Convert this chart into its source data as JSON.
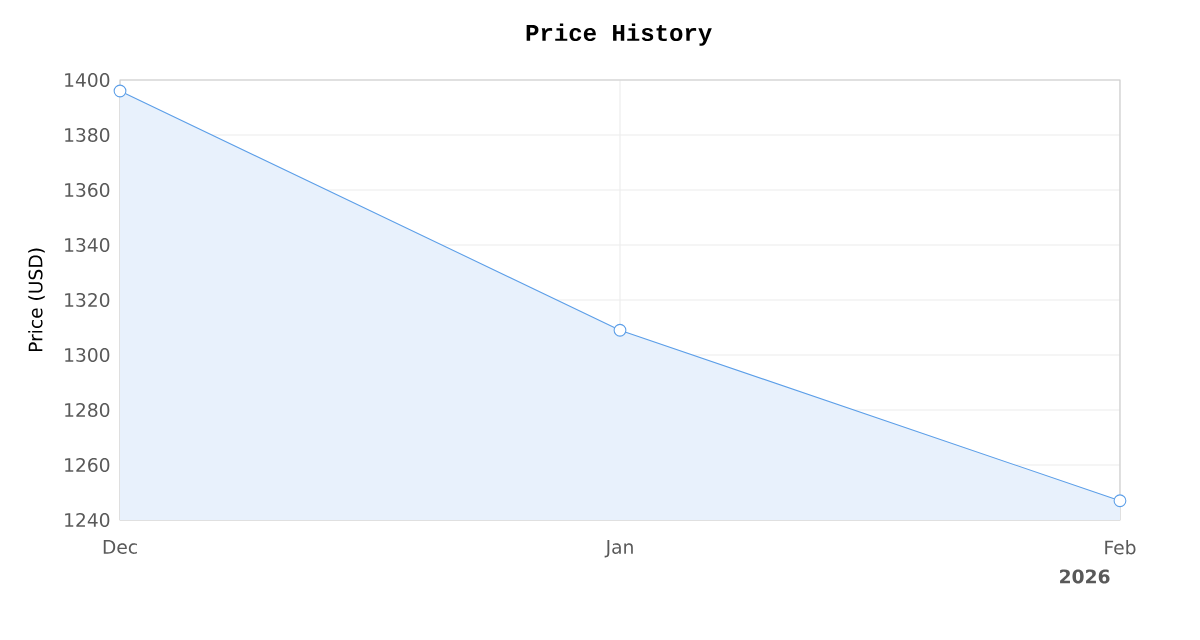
{
  "chart_data": {
    "type": "area",
    "title": "Price History",
    "ylabel": "Price (USD)",
    "x": [
      "2025-12-01",
      "2026-01-01",
      "2026-02-01"
    ],
    "series": [
      {
        "color": "#5b9ee8",
        "values": [
          1396,
          1309,
          1247
        ]
      }
    ],
    "xlim": [
      "2025-12-01",
      "2026-02-01"
    ],
    "xticks": [
      {
        "value": "2025-12-01",
        "label": "Dec"
      },
      {
        "value": "2026-01-01",
        "label": "Jan"
      },
      {
        "value": "2026-02-01",
        "label": "Feb"
      }
    ],
    "ylim": [
      1240,
      1400
    ],
    "yticks": [
      1240,
      1260,
      1280,
      1300,
      1320,
      1340,
      1360,
      1380,
      1400
    ],
    "annotations": [
      "2026"
    ],
    "grid": true,
    "marker": "circle"
  }
}
